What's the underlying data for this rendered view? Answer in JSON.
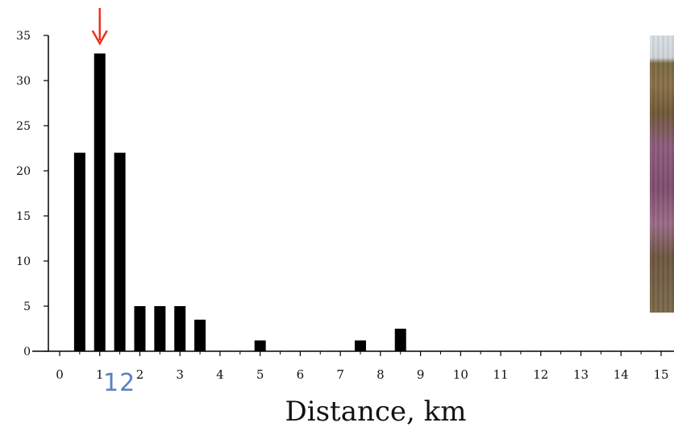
{
  "slide_number": "12",
  "photo_icon": "heather-moorland-photo",
  "chart_data": {
    "type": "bar",
    "xlabel": "Distance, km",
    "ylabel": "",
    "title": "",
    "x_ticks": [
      "0",
      "1",
      "2",
      "3",
      "4",
      "5",
      "6",
      "7",
      "8",
      "9",
      "10",
      "11",
      "12",
      "13",
      "14",
      "15"
    ],
    "y_ticks": [
      "0",
      "5",
      "10",
      "15",
      "20",
      "25",
      "30",
      "35"
    ],
    "xlim": [
      0,
      15
    ],
    "ylim": [
      0,
      35
    ],
    "x": [
      0.5,
      1.0,
      1.5,
      2.0,
      2.5,
      3.0,
      3.5,
      5.0,
      7.5,
      8.5
    ],
    "values": [
      22,
      33,
      22,
      5,
      5,
      5,
      3.5,
      1.2,
      1.2,
      2.5
    ],
    "annotation": {
      "x": 1.0,
      "color": "#e8351f",
      "icon": "down-arrow-icon"
    },
    "bar_color": "#000000"
  }
}
